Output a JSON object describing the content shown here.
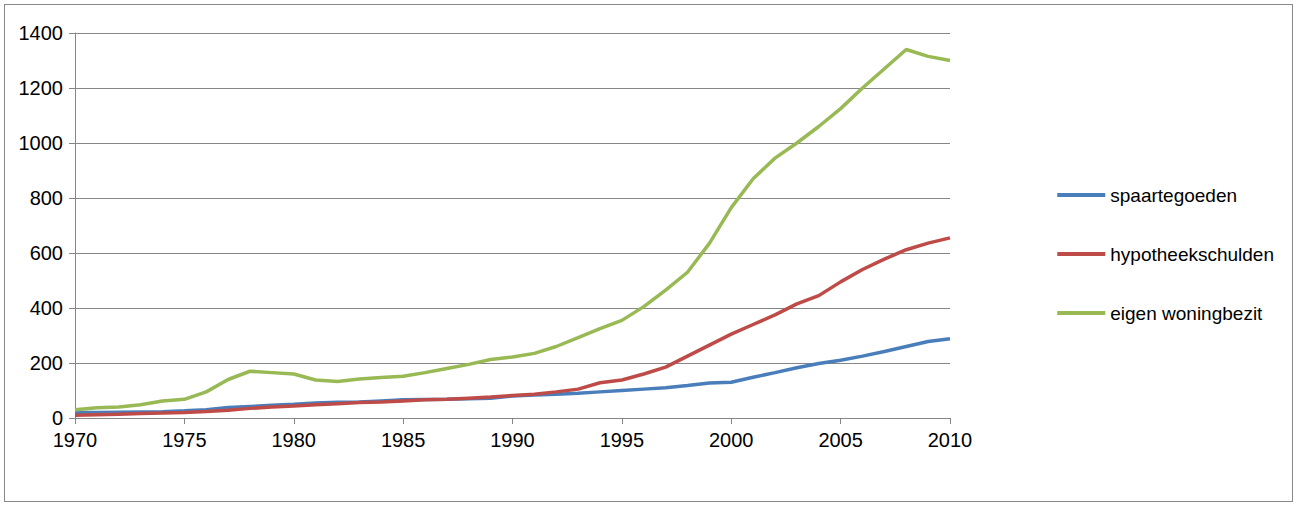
{
  "chart_data": {
    "type": "line",
    "x": [
      1970,
      1971,
      1972,
      1973,
      1974,
      1975,
      1976,
      1977,
      1978,
      1979,
      1980,
      1981,
      1982,
      1983,
      1984,
      1985,
      1986,
      1987,
      1988,
      1989,
      1990,
      1991,
      1992,
      1993,
      1994,
      1995,
      1996,
      1997,
      1998,
      1999,
      2000,
      2001,
      2002,
      2003,
      2004,
      2005,
      2006,
      2007,
      2008,
      2009,
      2010
    ],
    "series": [
      {
        "name": "spaartegoeden",
        "color": "#4a7ebb",
        "values": [
          20,
          20,
          21,
          22,
          23,
          26,
          30,
          38,
          42,
          46,
          50,
          55,
          57,
          58,
          62,
          66,
          67,
          68,
          70,
          72,
          80,
          84,
          86,
          90,
          95,
          100,
          105,
          110,
          118,
          127,
          130,
          148,
          165,
          183,
          198,
          210,
          225,
          242,
          260,
          278,
          288
        ]
      },
      {
        "name": "hypotheekschulden",
        "color": "#be4b48",
        "values": [
          10,
          12,
          14,
          16,
          18,
          20,
          24,
          28,
          35,
          40,
          44,
          48,
          52,
          56,
          58,
          62,
          66,
          68,
          72,
          76,
          82,
          86,
          95,
          105,
          128,
          138,
          160,
          185,
          225,
          265,
          305,
          340,
          375,
          415,
          445,
          495,
          540,
          578,
          612,
          636,
          655
        ]
      },
      {
        "name": "eigen woningbezit",
        "color": "#98b954",
        "values": [
          30,
          37,
          40,
          48,
          62,
          68,
          95,
          140,
          170,
          165,
          160,
          138,
          133,
          142,
          147,
          152,
          165,
          180,
          195,
          213,
          222,
          235,
          260,
          292,
          325,
          355,
          405,
          465,
          530,
          635,
          765,
          870,
          945,
          1000,
          1060,
          1125,
          1200,
          1270,
          1340,
          1315,
          1300
        ]
      }
    ],
    "xlim": [
      1970,
      2010
    ],
    "xticks": [
      1970,
      1975,
      1980,
      1985,
      1990,
      1995,
      2000,
      2005,
      2010
    ],
    "ylim": [
      0,
      1400
    ],
    "yticks": [
      0,
      200,
      400,
      600,
      800,
      1000,
      1200,
      1400
    ],
    "grid": true,
    "legend": "right"
  }
}
